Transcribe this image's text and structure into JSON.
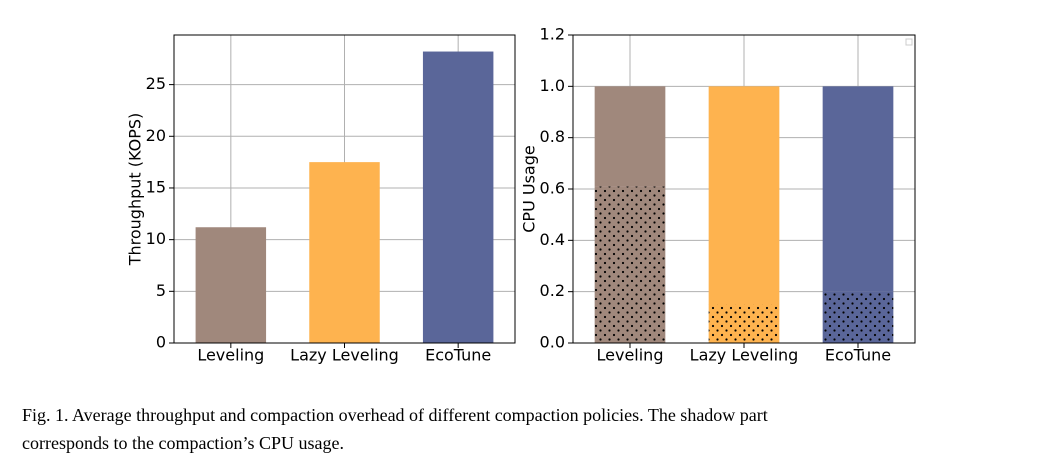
{
  "chart_data": [
    {
      "type": "bar",
      "ylabel": "Throughput (KOPS)",
      "categories": [
        "Leveling",
        "Lazy Leveling",
        "EcoTune"
      ],
      "values": [
        11.2,
        17.5,
        28.2
      ],
      "colors": [
        "#a0887c",
        "#feb34f",
        "#5a6699"
      ],
      "ylim": [
        0,
        29.8
      ],
      "yticks": [
        0,
        5,
        10,
        15,
        20,
        25
      ],
      "grid": true
    },
    {
      "type": "stacked-bar",
      "ylabel": "CPU Usage",
      "categories": [
        "Leveling",
        "Lazy Leveling",
        "EcoTune"
      ],
      "series": [
        {
          "values": [
            0.61,
            0.15,
            0.2
          ],
          "hatch": "dots"
        },
        {
          "values": [
            0.39,
            0.85,
            0.8
          ]
        }
      ],
      "colors": [
        "#a0887c",
        "#feb34f",
        "#5a6699"
      ],
      "ylim": [
        0,
        1.2
      ],
      "yticks": [
        {
          "value": 0,
          "label": "0.0"
        },
        0.2,
        0.4,
        0.6,
        0.8,
        {
          "value": 1,
          "label": "1.0"
        },
        1.2
      ],
      "grid": true,
      "legend": "upper right"
    }
  ],
  "caption": [
    "Fig. 1.  Average throughput and compaction overhead of different compaction policies. The shadow part",
    "corresponds to the compaction’s CPU usage."
  ]
}
